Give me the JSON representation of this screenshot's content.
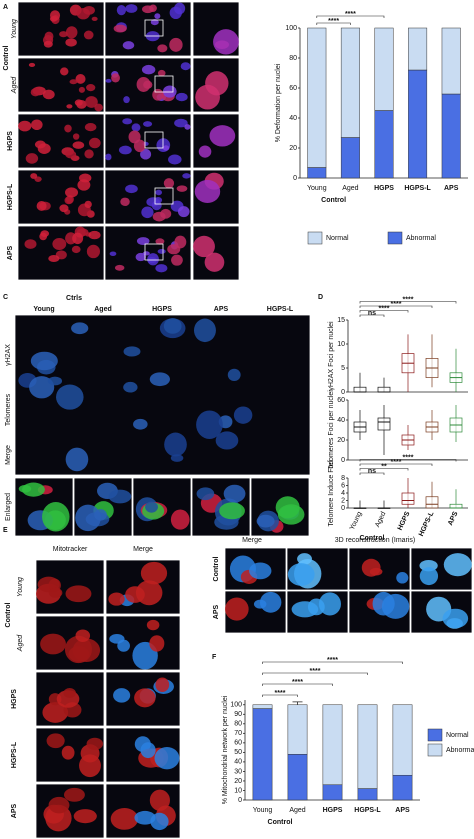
{
  "panel_a": {
    "letter": "A",
    "group": "Control",
    "rows": [
      "Young",
      "Aged",
      "HGPS",
      "HGPS-L",
      "APS"
    ]
  },
  "panel_c": {
    "letter": "C",
    "group": "Ctrls",
    "columns": [
      "Young",
      "Aged",
      "HGPS",
      "APS",
      "HGPS-L"
    ],
    "rows": [
      "γH2AX",
      "Telomeres",
      "Merge",
      "Enlarged"
    ]
  },
  "panel_d": {
    "letter": "D"
  },
  "panel_e": {
    "letter": "E",
    "columns": [
      "Mitotracker",
      "Merge"
    ],
    "group": "Control",
    "rows": [
      "Young",
      "Aged",
      "HGPS",
      "HGPS-L",
      "APS"
    ]
  },
  "panel_e_right": {
    "columns": [
      "Merge",
      "3D reconstruction (Imaris)"
    ],
    "rows": [
      "Control",
      "APS"
    ]
  },
  "panel_f": {
    "letter": "F"
  },
  "chart_data": [
    {
      "type": "stacked-bar",
      "ylabel": "% Deformation per nuclei",
      "categories": [
        "Young",
        "Aged",
        "HGPS",
        "HGPS-L",
        "APS"
      ],
      "category_colors": [
        "#111111",
        "#111111",
        "#e8262a",
        "#f08a1c",
        "#2fbf2f"
      ],
      "group_label": "Control",
      "stack": "reverse",
      "series": [
        {
          "name": "Normal",
          "color": "#c9dcf2",
          "values": [
            93,
            73,
            55,
            28,
            44
          ]
        },
        {
          "name": "Abnormal",
          "color": "#4a6fe3",
          "values": [
            7,
            27,
            45,
            72,
            56
          ],
          "errors": [
            1,
            16,
            26,
            2,
            21
          ]
        }
      ],
      "ylim": [
        0,
        100
      ],
      "yticks": [
        0,
        20,
        40,
        60,
        80,
        100
      ],
      "significance": [
        {
          "label": "****",
          "to": 1
        },
        {
          "label": "****",
          "to": 2
        }
      ],
      "legend": "bottom"
    },
    {
      "type": "box",
      "ylabel": "γH2AX Foci per nuclei",
      "colors": [
        "#111111",
        "#111111",
        "#8b1a1a",
        "#7a3b1e",
        "#2e8b3a"
      ],
      "boxes": [
        [
          0,
          0,
          0,
          1,
          4
        ],
        [
          0,
          0,
          0,
          1,
          3
        ],
        [
          0,
          4,
          6,
          8,
          12
        ],
        [
          1,
          3,
          5,
          7,
          12
        ],
        [
          0,
          2,
          3,
          4,
          9
        ]
      ],
      "ylim": [
        0,
        15
      ],
      "yticks": [
        0,
        5,
        10,
        15
      ],
      "significance": [
        {
          "label": "ns",
          "to": 1
        },
        {
          "label": "****",
          "to": 2
        },
        {
          "label": "****",
          "to": 3
        },
        {
          "label": "****",
          "to": 4
        }
      ]
    },
    {
      "type": "box",
      "ylabel": "Telomeres Foci per nuclei",
      "colors": [
        "#111111",
        "#111111",
        "#8b1a1a",
        "#7a3b1e",
        "#2e8b3a"
      ],
      "boxes": [
        [
          20,
          28,
          33,
          38,
          50
        ],
        [
          5,
          30,
          38,
          42,
          55
        ],
        [
          10,
          15,
          20,
          25,
          35
        ],
        [
          20,
          28,
          33,
          38,
          50
        ],
        [
          18,
          28,
          35,
          42,
          55
        ]
      ],
      "ylim": [
        0,
        60
      ],
      "yticks": [
        0,
        20,
        40,
        60
      ],
      "significance": []
    },
    {
      "type": "box",
      "ylabel": "Telomere Induce Foci",
      "categories": [
        "Young",
        "Aged",
        "HGPS",
        "HGPS-L",
        "APS"
      ],
      "category_colors": [
        "#111111",
        "#111111",
        "#e8262a",
        "#f08a1c",
        "#2fbf2f"
      ],
      "group_label": "Control",
      "colors": [
        "#111111",
        "#111111",
        "#8b1a1a",
        "#7a3b1e",
        "#2e8b3a"
      ],
      "boxes": [
        [
          0,
          0,
          0,
          0,
          2
        ],
        [
          0,
          0,
          0,
          0,
          2
        ],
        [
          0,
          1,
          2,
          4,
          8
        ],
        [
          0,
          0,
          1,
          3,
          7
        ],
        [
          0,
          0,
          0,
          1,
          5
        ]
      ],
      "ylim": [
        0,
        8
      ],
      "yticks": [
        0,
        2,
        4,
        6,
        8
      ],
      "significance": [
        {
          "label": "ns",
          "to": 1
        },
        {
          "label": "**",
          "to": 2
        },
        {
          "label": "****",
          "to": 3
        },
        {
          "label": "****",
          "to": 4
        }
      ]
    },
    {
      "type": "stacked-bar",
      "ylabel": "% Mitochondrial network per nuclei",
      "categories": [
        "Young",
        "Aged",
        "HGPS",
        "HGPS-L",
        "APS"
      ],
      "category_colors": [
        "#111111",
        "#111111",
        "#e8262a",
        "#f08a1c",
        "#2fbf2f"
      ],
      "group_label": "Control",
      "series": [
        {
          "name": "Normal",
          "color": "#4a6fe3",
          "values": [
            96,
            48,
            16,
            12,
            26
          ],
          "errors": [
            2,
            55,
            8,
            16,
            33
          ]
        },
        {
          "name": "Abnormal",
          "color": "#c9dcf2",
          "values": [
            4,
            52,
            84,
            88,
            74
          ]
        }
      ],
      "ylim": [
        0,
        105
      ],
      "yticks": [
        0,
        10,
        20,
        30,
        40,
        50,
        60,
        70,
        80,
        90,
        100
      ],
      "significance": [
        {
          "label": "****",
          "to": 1
        },
        {
          "label": "****",
          "to": 2
        },
        {
          "label": "****",
          "to": 3
        },
        {
          "label": "****",
          "to": 4
        }
      ],
      "legend": "right"
    }
  ]
}
